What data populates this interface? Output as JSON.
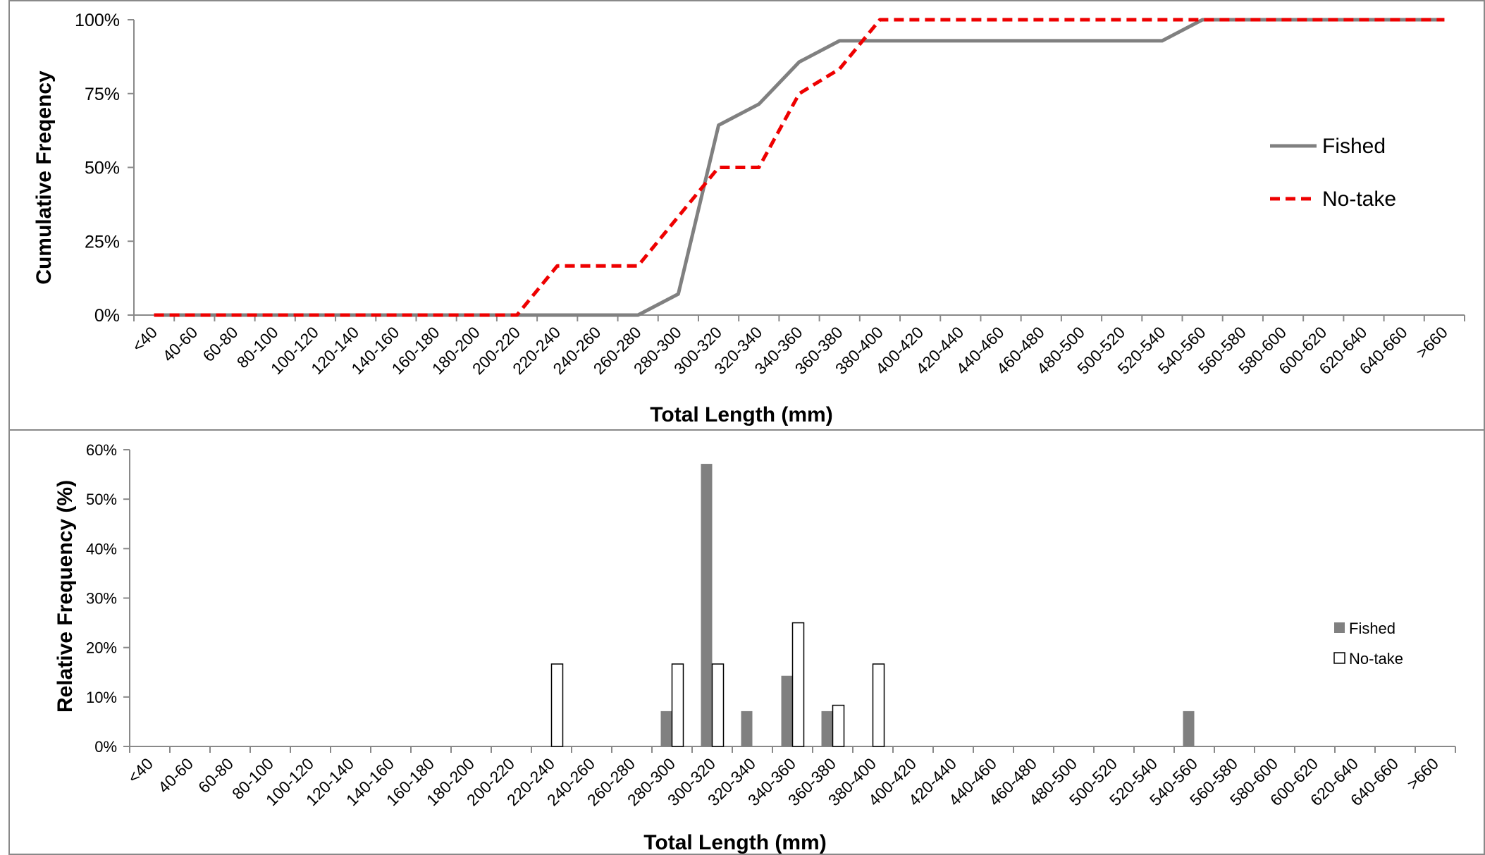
{
  "colors": {
    "fished": "#808080",
    "notake": "#ee0000",
    "axis": "#898989",
    "frame": "#898989",
    "bar_outline": "#000000"
  },
  "chart_data": [
    {
      "type": "line",
      "xlabel": "Total Length (mm)",
      "ylabel": "Cumulative Freqency",
      "ylim": [
        0,
        1
      ],
      "yticks": [
        "0%",
        "25%",
        "50%",
        "75%",
        "100%"
      ],
      "categories": [
        "<40",
        "40-60",
        "60-80",
        "80-100",
        "100-120",
        "120-140",
        "140-160",
        "160-180",
        "180-200",
        "200-220",
        "220-240",
        "240-260",
        "260-280",
        "280-300",
        "300-320",
        "320-340",
        "340-360",
        "360-380",
        "380-400",
        "400-420",
        "420-440",
        "440-460",
        "460-480",
        "480-500",
        "500-520",
        "520-540",
        "540-560",
        "560-580",
        "580-600",
        "600-620",
        "620-640",
        "640-660",
        ">660"
      ],
      "legend_position": "right",
      "series": [
        {
          "name": "Fished",
          "style": "solid",
          "values": [
            0,
            0,
            0,
            0,
            0,
            0,
            0,
            0,
            0,
            0,
            0,
            0,
            0,
            0.0714,
            0.6429,
            0.7143,
            0.8571,
            0.9286,
            0.9286,
            0.9286,
            0.9286,
            0.9286,
            0.9286,
            0.9286,
            0.9286,
            0.9286,
            1,
            1,
            1,
            1,
            1,
            1,
            1
          ]
        },
        {
          "name": "No-take",
          "style": "dashed",
          "values": [
            0,
            0,
            0,
            0,
            0,
            0,
            0,
            0,
            0,
            0,
            0.1667,
            0.1667,
            0.1667,
            0.3333,
            0.5,
            0.5,
            0.75,
            0.8333,
            1,
            1,
            1,
            1,
            1,
            1,
            1,
            1,
            1,
            1,
            1,
            1,
            1,
            1,
            1
          ]
        }
      ]
    },
    {
      "type": "bar",
      "xlabel": "Total Length (mm)",
      "ylabel": "Relative Frequency (%)",
      "ylim": [
        0,
        0.6
      ],
      "yticks": [
        "0%",
        "10%",
        "20%",
        "30%",
        "40%",
        "50%",
        "60%"
      ],
      "categories": [
        "<40",
        "40-60",
        "60-80",
        "80-100",
        "100-120",
        "120-140",
        "140-160",
        "160-180",
        "180-200",
        "200-220",
        "220-240",
        "240-260",
        "260-280",
        "280-300",
        "300-320",
        "320-340",
        "340-360",
        "360-380",
        "380-400",
        "400-420",
        "420-440",
        "440-460",
        "460-480",
        "480-500",
        "500-520",
        "520-540",
        "540-560",
        "560-580",
        "580-600",
        "600-620",
        "620-640",
        "640-660",
        ">660"
      ],
      "legend_position": "right",
      "series": [
        {
          "name": "Fished",
          "fill": "gray",
          "values": [
            0,
            0,
            0,
            0,
            0,
            0,
            0,
            0,
            0,
            0,
            0,
            0,
            0,
            0.0714,
            0.5714,
            0.0714,
            0.1429,
            0.0714,
            0,
            0,
            0,
            0,
            0,
            0,
            0,
            0,
            0.0714,
            0,
            0,
            0,
            0,
            0,
            0
          ]
        },
        {
          "name": "No-take",
          "fill": "white",
          "values": [
            0,
            0,
            0,
            0,
            0,
            0,
            0,
            0,
            0,
            0,
            0.1667,
            0,
            0,
            0.1667,
            0.1667,
            0,
            0.25,
            0.0833,
            0.1667,
            0,
            0,
            0,
            0,
            0,
            0,
            0,
            0,
            0,
            0,
            0,
            0,
            0,
            0
          ]
        }
      ]
    }
  ]
}
